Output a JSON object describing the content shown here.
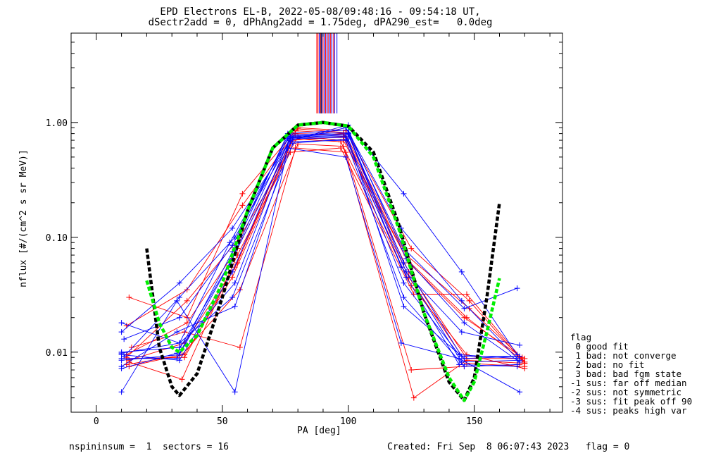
{
  "header": {
    "title_line1": "EPD Electrons EL-B, 2022-05-08/09:48:16 - 09:54:18 UT,",
    "title_line2": "dSectr2add = 0, dPhAng2add = 1.75deg, dPA290_est=   0.0deg"
  },
  "footer": {
    "left": "nspininsum =  1  sectors = 16",
    "right": "Created: Fri Sep  8 06:07:43 2023   flag = 0"
  },
  "legend": {
    "title": "flag",
    "items": [
      " 0 good fit",
      " 1 bad: not converge",
      " 2 bad: no fit",
      " 3 bad: bad fgm state",
      "-1 sus: far off median",
      "-2 sus: not symmetric",
      "-3 sus: fit peak off 90",
      "-4 sus: peaks high var"
    ]
  },
  "chart_data": {
    "type": "line",
    "title": "EPD Electrons EL-B, 2022-05-08/09:48:16 - 09:54:18 UT,",
    "subtitle": "dSectr2add = 0, dPhAng2add = 1.75deg, dPA290_est=   0.0deg",
    "xlabel": "PA [deg]",
    "ylabel": "nflux [#/(cm^2 s sr MeV)]",
    "xlim": [
      -10,
      185
    ],
    "ylim": [
      0.003,
      6.0
    ],
    "yscale": "log",
    "xticks": [
      0,
      50,
      100,
      150
    ],
    "yticks": [
      0.01,
      0.1,
      1.0
    ],
    "ytick_labels": [
      "0.01",
      "0.10",
      "1.00"
    ],
    "colors": {
      "red": "#ff0000",
      "blue": "#0000ff",
      "black": "#000000",
      "green": "#00ee00"
    },
    "series": [
      {
        "color": "red",
        "x": [
          12,
          35,
          56,
          78,
          98,
          124,
          147,
          170
        ],
        "y": [
          0.0088,
          0.009,
          0.06,
          0.85,
          0.8,
          0.05,
          0.0088,
          0.0088
        ]
      },
      {
        "color": "red",
        "x": [
          12,
          35,
          54,
          78,
          98,
          124,
          147,
          170
        ],
        "y": [
          0.0078,
          0.0095,
          0.045,
          0.7,
          0.75,
          0.045,
          0.008,
          0.0075
        ]
      },
      {
        "color": "red",
        "x": [
          13,
          36,
          58,
          80,
          99,
          125,
          148,
          170
        ],
        "y": [
          0.03,
          0.02,
          0.24,
          0.9,
          0.85,
          0.08,
          0.028,
          0.008
        ]
      },
      {
        "color": "red",
        "x": [
          12,
          36,
          58,
          80,
          98,
          123,
          147,
          169
        ],
        "y": [
          0.017,
          0.035,
          0.19,
          0.88,
          0.82,
          0.065,
          0.02,
          0.0085
        ]
      },
      {
        "color": "red",
        "x": [
          14,
          35,
          57,
          79,
          99,
          125,
          146,
          168
        ],
        "y": [
          0.011,
          0.015,
          0.011,
          0.6,
          0.55,
          0.007,
          0.0075,
          0.0078
        ]
      },
      {
        "color": "red",
        "x": [
          13,
          34,
          56,
          77,
          97,
          126,
          147,
          170
        ],
        "y": [
          0.0082,
          0.0058,
          0.07,
          0.55,
          0.6,
          0.032,
          0.032,
          0.0082
        ]
      },
      {
        "color": "red",
        "x": [
          12,
          36,
          57,
          80,
          98,
          124,
          146,
          169
        ],
        "y": [
          0.009,
          0.028,
          0.1,
          0.75,
          0.7,
          0.06,
          0.02,
          0.009
        ]
      },
      {
        "color": "red",
        "x": [
          13,
          35,
          55,
          78,
          97,
          125,
          147,
          170
        ],
        "y": [
          0.0085,
          0.012,
          0.055,
          0.72,
          0.68,
          0.038,
          0.0095,
          0.0072
        ]
      },
      {
        "color": "red",
        "x": [
          12,
          36,
          56,
          79,
          99,
          123,
          148,
          169
        ],
        "y": [
          0.0095,
          0.018,
          0.08,
          0.8,
          0.78,
          0.07,
          0.024,
          0.0088
        ]
      },
      {
        "color": "red",
        "x": [
          13,
          34,
          57,
          80,
          98,
          126,
          147,
          170
        ],
        "y": [
          0.0075,
          0.0095,
          0.035,
          0.65,
          0.62,
          0.004,
          0.0085,
          0.008
        ]
      },
      {
        "color": "blue",
        "x": [
          10,
          33,
          54,
          77,
          100,
          122,
          145,
          167
        ],
        "y": [
          0.0095,
          0.0085,
          0.05,
          0.75,
          0.8,
          0.06,
          0.0092,
          0.0092
        ]
      },
      {
        "color": "blue",
        "x": [
          10,
          33,
          54,
          77,
          100,
          122,
          145,
          167
        ],
        "y": [
          0.015,
          0.04,
          0.12,
          0.7,
          0.95,
          0.24,
          0.05,
          0.0095
        ]
      },
      {
        "color": "blue",
        "x": [
          10,
          32,
          55,
          76,
          99,
          121,
          144,
          168
        ],
        "y": [
          0.0045,
          0.028,
          0.0045,
          0.6,
          0.5,
          0.012,
          0.0088,
          0.0045
        ]
      },
      {
        "color": "blue",
        "x": [
          10,
          33,
          53,
          77,
          100,
          122,
          146,
          167
        ],
        "y": [
          0.018,
          0.012,
          0.09,
          0.78,
          0.82,
          0.08,
          0.024,
          0.036
        ]
      },
      {
        "color": "blue",
        "x": [
          10,
          33,
          54,
          78,
          100,
          123,
          145,
          168
        ],
        "y": [
          0.0085,
          0.0095,
          0.065,
          0.74,
          0.78,
          0.05,
          0.0082,
          0.0085
        ]
      },
      {
        "color": "blue",
        "x": [
          10,
          32,
          55,
          77,
          99,
          122,
          146,
          167
        ],
        "y": [
          0.0075,
          0.015,
          0.025,
          0.68,
          0.7,
          0.03,
          0.0075,
          0.0078
        ]
      },
      {
        "color": "blue",
        "x": [
          11,
          33,
          54,
          76,
          100,
          121,
          145,
          168
        ],
        "y": [
          0.013,
          0.02,
          0.085,
          0.76,
          0.8,
          0.055,
          0.015,
          0.0115
        ]
      },
      {
        "color": "blue",
        "x": [
          10,
          33,
          55,
          77,
          99,
          122,
          144,
          167
        ],
        "y": [
          0.01,
          0.011,
          0.04,
          0.72,
          0.74,
          0.04,
          0.0095,
          0.0088
        ]
      },
      {
        "color": "blue",
        "x": [
          10,
          32,
          54,
          76,
          100,
          123,
          146,
          168
        ],
        "y": [
          0.0088,
          0.0088,
          0.075,
          0.8,
          0.86,
          0.065,
          0.018,
          0.0082
        ]
      },
      {
        "color": "blue",
        "x": [
          11,
          33,
          55,
          77,
          99,
          121,
          145,
          167
        ],
        "y": [
          0.0092,
          0.03,
          0.1,
          0.7,
          0.9,
          0.12,
          0.028,
          0.0088
        ]
      },
      {
        "color": "blue",
        "x": [
          10,
          33,
          54,
          78,
          100,
          122,
          146,
          168
        ],
        "y": [
          0.0098,
          0.012,
          0.03,
          0.66,
          0.72,
          0.025,
          0.0088,
          0.0092
        ]
      },
      {
        "color": "blue",
        "x": [
          10,
          32,
          53,
          76,
          99,
          123,
          144,
          167
        ],
        "y": [
          0.0072,
          0.0098,
          0.06,
          0.73,
          0.76,
          0.045,
          0.0078,
          0.0075
        ]
      }
    ],
    "fit_curves": [
      {
        "color": "black",
        "dashed": true,
        "x": [
          20,
          25,
          30,
          33,
          40,
          50,
          60,
          70,
          80,
          90,
          100,
          110,
          120,
          130,
          140,
          146,
          150,
          155,
          160
        ],
        "y": [
          0.08,
          0.011,
          0.005,
          0.0042,
          0.0065,
          0.03,
          0.17,
          0.6,
          0.95,
          1.0,
          0.93,
          0.55,
          0.13,
          0.022,
          0.0055,
          0.0038,
          0.006,
          0.03,
          0.2
        ]
      },
      {
        "color": "green",
        "dashed": true,
        "x": [
          20,
          25,
          30,
          33,
          40,
          50,
          60,
          70,
          80,
          90,
          100,
          110,
          120,
          130,
          140,
          146,
          150,
          155,
          160
        ],
        "y": [
          0.042,
          0.018,
          0.011,
          0.01,
          0.014,
          0.04,
          0.17,
          0.6,
          0.95,
          1.0,
          0.93,
          0.5,
          0.12,
          0.022,
          0.006,
          0.0038,
          0.0055,
          0.015,
          0.044
        ]
      }
    ],
    "top_bars": [
      {
        "color": "blue",
        "x": [
          88.5,
          89.5,
          90.5,
          91.5,
          92.5,
          93.5,
          94.5,
          95.5
        ]
      },
      {
        "color": "red",
        "x": [
          87.5,
          88,
          89,
          90,
          91,
          92,
          93,
          94.2
        ]
      },
      {
        "color": "black",
        "x": [
          89.2
        ]
      }
    ]
  }
}
